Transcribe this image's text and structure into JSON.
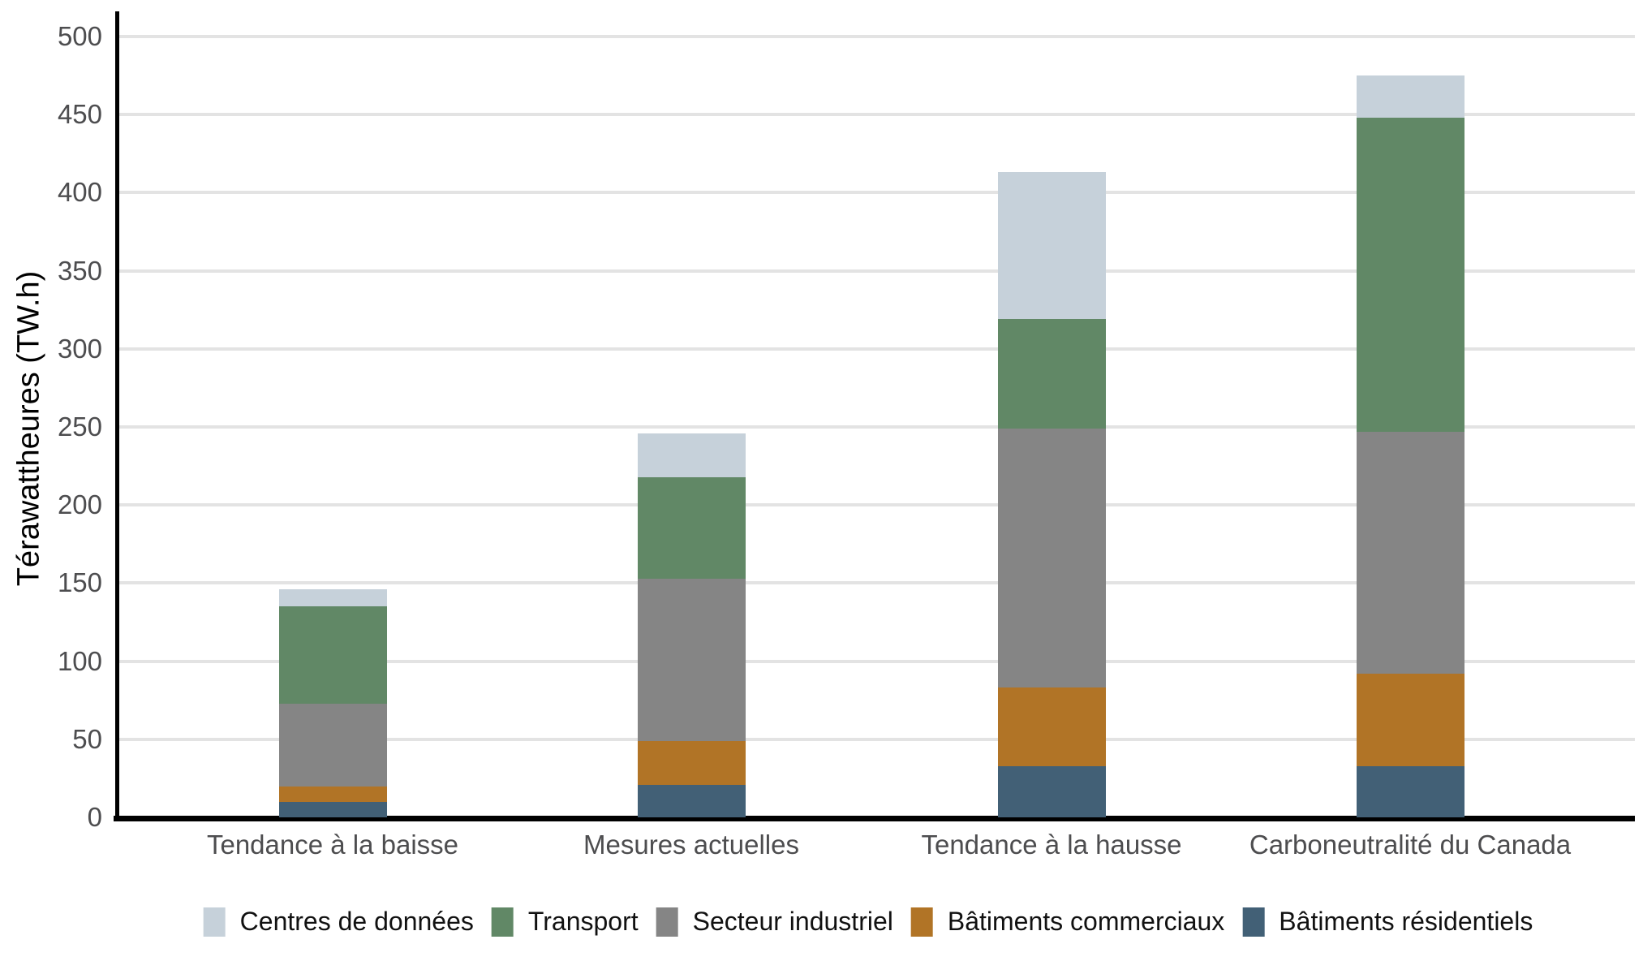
{
  "chart_data": {
    "type": "bar",
    "stacked": true,
    "title": "",
    "xlabel": "",
    "ylabel": "Térawattheures (TW.h)",
    "ylim": [
      0,
      500
    ],
    "ytick_step": 50,
    "ytick_labels": [
      "0",
      "50",
      "100",
      "150",
      "200",
      "250",
      "300",
      "350",
      "400",
      "450",
      "500"
    ],
    "categories": [
      "Tendance à la baisse",
      "Mesures actuelles",
      "Tendance à la hausse",
      "Carboneutralité du Canada"
    ],
    "stack_order_bottom_to_top": [
      "Bâtiments résidentiels",
      "Bâtiments commerciaux",
      "Secteur industriel",
      "Transport",
      "Centres de données"
    ],
    "series": [
      {
        "name": "Centres de données",
        "color": "#c6d1da",
        "values": [
          11,
          28,
          94,
          27
        ]
      },
      {
        "name": "Transport",
        "color": "#618866",
        "values": [
          62,
          65,
          70,
          201
        ]
      },
      {
        "name": "Secteur industriel",
        "color": "#858585",
        "values": [
          53,
          104,
          166,
          155
        ]
      },
      {
        "name": "Bâtiments commerciaux",
        "color": "#b17426",
        "values": [
          10,
          28,
          50,
          59
        ]
      },
      {
        "name": "Bâtiments résidentiels",
        "color": "#426076",
        "values": [
          10,
          21,
          33,
          33
        ]
      }
    ],
    "totals": [
      146,
      246,
      413,
      475
    ],
    "legend_position": "bottom",
    "grid": true,
    "gridline_color": "#e3e3e3",
    "axis_color": "#000000",
    "tick_label_color": "#4d4d4f"
  }
}
